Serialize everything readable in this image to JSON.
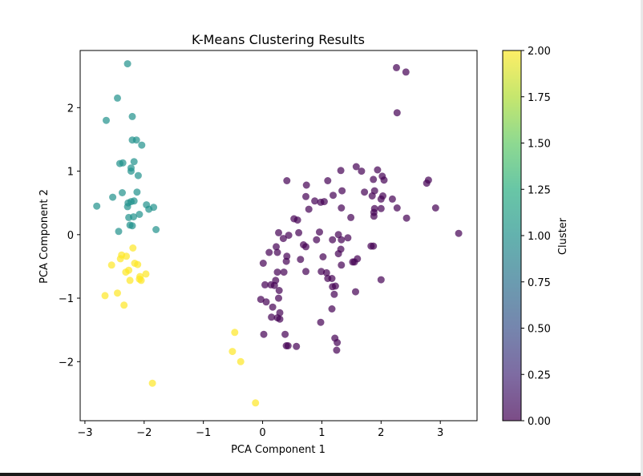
{
  "chart_data": {
    "type": "scatter",
    "title": "K-Means Clustering Results",
    "xlabel": "PCA Component 1",
    "ylabel": "PCA Component 2",
    "xlim": [
      -3.08,
      3.62
    ],
    "ylim": [
      -2.93,
      2.9
    ],
    "xticks": [
      -3,
      -2,
      -1,
      0,
      1,
      2,
      3
    ],
    "xtick_labels": [
      "−3",
      "−2",
      "−1",
      "0",
      "1",
      "2",
      "3"
    ],
    "yticks": [
      -2,
      -1,
      0,
      1,
      2
    ],
    "ytick_labels": [
      "−2",
      "−1",
      "0",
      "1",
      "2"
    ],
    "grid": false,
    "colorbar": {
      "label": "Cluster",
      "range": [
        0.0,
        2.0
      ],
      "ticks": [
        0,
        0.25,
        0.5,
        0.75,
        1.0,
        1.25,
        1.5,
        1.75,
        2.0
      ],
      "tick_labels": [
        "0.00",
        "0.25",
        "0.50",
        "0.75",
        "1.00",
        "1.25",
        "1.50",
        "1.75",
        "2.00"
      ],
      "colormap": "viridis",
      "alpha": 0.7
    },
    "series": [
      {
        "cluster": 1,
        "color": "#21918c",
        "x": [
          -2.28,
          -2.45,
          -2.2,
          -2.64,
          -2.13,
          -2.2,
          -2.04,
          -2.41,
          -2.36,
          -2.17,
          -2.22,
          -2.22,
          -2.1,
          -2.8,
          -2.37,
          -2.27,
          -1.96,
          -2.22,
          -2.17,
          -2.12,
          -2.28,
          -2.53,
          -1.84,
          -2.26,
          -1.92,
          -2.08,
          -2.43,
          -2.18,
          -2.24,
          -2.2,
          -1.8
        ],
        "y": [
          2.69,
          2.15,
          1.86,
          1.8,
          1.49,
          1.49,
          1.41,
          1.12,
          1.13,
          1.15,
          1.05,
          1.0,
          0.93,
          0.45,
          0.66,
          0.5,
          0.47,
          0.52,
          0.53,
          0.67,
          0.44,
          0.59,
          0.43,
          0.27,
          0.4,
          0.32,
          0.05,
          0.28,
          0.15,
          0.14,
          0.08
        ]
      },
      {
        "cluster": 2,
        "color": "#fde725",
        "x": [
          -2.19,
          -2.3,
          -2.38,
          -2.4,
          -2.55,
          -2.16,
          -2.11,
          -2.31,
          -2.24,
          -2.07,
          -2.05,
          -2.26,
          -2.08,
          -1.97,
          -2.45,
          -2.66,
          -2.34,
          -1.86,
          -0.47,
          -0.51,
          -0.37,
          -0.12
        ],
        "y": [
          -0.21,
          -0.34,
          -0.32,
          -0.38,
          -0.48,
          -0.45,
          -0.47,
          -0.59,
          -0.72,
          -0.66,
          -0.72,
          -0.56,
          -0.7,
          -0.62,
          -0.92,
          -0.96,
          -1.11,
          -2.34,
          -1.54,
          -1.84,
          -2.0,
          -2.65
        ]
      },
      {
        "cluster": 0,
        "color": "#440154",
        "x": [
          2.26,
          2.42,
          2.27,
          1.58,
          1.94,
          2.02,
          1.87,
          2.05,
          1.32,
          1.67,
          1.89,
          2.0,
          2.03,
          2.77,
          2.8,
          2.19,
          1.85,
          1.89,
          2.0,
          1.88,
          1.72,
          1.34,
          1.1,
          0.41,
          0.74,
          0.73,
          1.19,
          0.88,
          1.33,
          1.49,
          1.88,
          2.27,
          2.92,
          2.43,
          3.31,
          1.87,
          1.83,
          1.44,
          1.52,
          1.18,
          1.6,
          1.32,
          0.78,
          0.98,
          1.04,
          0.53,
          0.59,
          0.35,
          0.27,
          0.44,
          0.61,
          0.69,
          0.73,
          0.91,
          1.28,
          1.02,
          0.99,
          0.04,
          0.01,
          0.23,
          0.25,
          0.4,
          0.64,
          0.73,
          1.08,
          1.23,
          1.18,
          1.57,
          1.55,
          1.33,
          0.96,
          1.28,
          1.33,
          2.0,
          1.1,
          1.17,
          1.21,
          0.06,
          0.14,
          0.2,
          0.22,
          0.25,
          0.28,
          0.36,
          0.27,
          0.11,
          0.41,
          0.17,
          0.25,
          0.29,
          0.38,
          0.98,
          0.02,
          -0.03,
          0.4,
          0.15,
          0.29,
          1.22,
          1.26,
          0.43,
          0.57,
          1.25,
          1.17
        ],
        "y": [
          2.63,
          2.56,
          1.92,
          1.07,
          1.02,
          0.92,
          0.87,
          0.86,
          1.01,
          1.0,
          0.69,
          0.56,
          0.61,
          0.81,
          0.86,
          0.56,
          0.61,
          0.41,
          0.41,
          0.35,
          0.67,
          0.69,
          0.85,
          0.85,
          0.78,
          0.6,
          0.62,
          0.53,
          0.42,
          0.27,
          0.29,
          0.42,
          0.42,
          0.26,
          0.02,
          -0.18,
          -0.18,
          -0.05,
          -0.43,
          -0.08,
          -0.38,
          -0.23,
          0.4,
          0.51,
          0.52,
          0.25,
          0.23,
          -0.06,
          0.03,
          -0.01,
          0.03,
          -0.16,
          -0.19,
          -0.08,
          -0.3,
          -0.35,
          -0.58,
          -0.79,
          -0.45,
          -0.19,
          -0.28,
          -0.42,
          -0.39,
          -0.58,
          -0.6,
          -0.81,
          -0.82,
          -0.9,
          -0.43,
          -0.48,
          0.04,
          0.0,
          -0.08,
          -0.71,
          -0.69,
          -0.69,
          -0.94,
          -1.06,
          -0.79,
          -0.8,
          -0.72,
          -0.59,
          -0.88,
          -0.59,
          -1.0,
          -0.28,
          -0.34,
          -1.14,
          -1.31,
          -1.23,
          -1.57,
          -1.38,
          -1.57,
          -1.02,
          -1.75,
          -1.3,
          -1.33,
          -1.63,
          -1.7,
          -1.75,
          -1.76,
          -1.82,
          -1.17
        ]
      }
    ]
  }
}
